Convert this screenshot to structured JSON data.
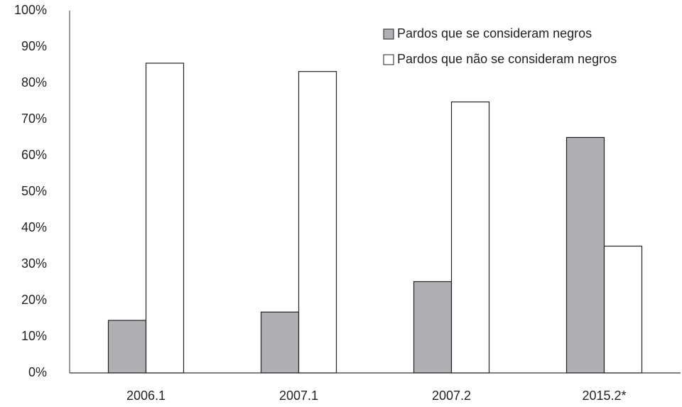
{
  "chart_data": {
    "type": "bar",
    "categories": [
      "2006.1",
      "2007.1",
      "2007.2",
      "2015.2*"
    ],
    "series": [
      {
        "name": "Pardos que se consideram negros",
        "color": "#b0b0b4",
        "values": [
          14.5,
          16.8,
          25.2,
          65.0
        ]
      },
      {
        "name": "Pardos que não se consideram negros",
        "color": "#ffffff",
        "values": [
          85.5,
          83.2,
          74.8,
          35.0
        ]
      }
    ],
    "ylim": [
      0,
      100
    ],
    "yticks": [
      {
        "value": 0,
        "label": "0%"
      },
      {
        "value": 10,
        "label": "10%"
      },
      {
        "value": 20,
        "label": "20%"
      },
      {
        "value": 30,
        "label": "30%"
      },
      {
        "value": 40,
        "label": "40%"
      },
      {
        "value": 50,
        "label": "50%"
      },
      {
        "value": 60,
        "label": "60%"
      },
      {
        "value": 70,
        "label": "70%"
      },
      {
        "value": 80,
        "label": "80%"
      },
      {
        "value": 90,
        "label": "90%"
      },
      {
        "value": 100,
        "label": "100%"
      }
    ],
    "grid": false,
    "legend": "top-right"
  }
}
